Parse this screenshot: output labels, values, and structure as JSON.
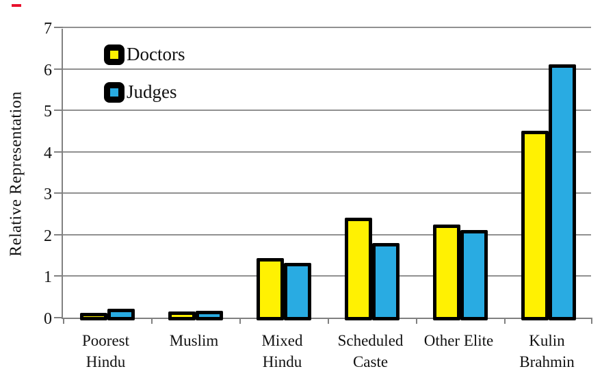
{
  "chart_data": {
    "type": "bar",
    "title": "",
    "categories": [
      "Poorest Hindu",
      "Muslim",
      "Mixed Hindu",
      "Scheduled Caste",
      "Other Elite",
      "Kulin Brahmin"
    ],
    "category_labels_wrapped": [
      "Poorest\nHindu",
      "Muslim",
      "Mixed\nHindu",
      "Scheduled\nCaste",
      "Other Elite",
      "Kulin\nBrahmin"
    ],
    "series": [
      {
        "name": "Doctors",
        "color": "#fff102",
        "values": [
          0.07,
          0.12,
          1.4,
          2.38,
          2.22,
          4.47
        ]
      },
      {
        "name": "Judges",
        "color": "#29abe2",
        "values": [
          0.18,
          0.14,
          1.28,
          1.77,
          2.08,
          6.07
        ]
      }
    ],
    "xlabel": "",
    "ylabel": "Relative Representation",
    "ylim": [
      0,
      7
    ],
    "yticks": [
      0,
      1,
      2,
      3,
      4,
      5,
      6,
      7
    ],
    "grid": true,
    "legend_position": "top-left-inside",
    "bar_outline_color": "#000000",
    "axis_color": "#808080",
    "background_color": "#ffffff"
  }
}
